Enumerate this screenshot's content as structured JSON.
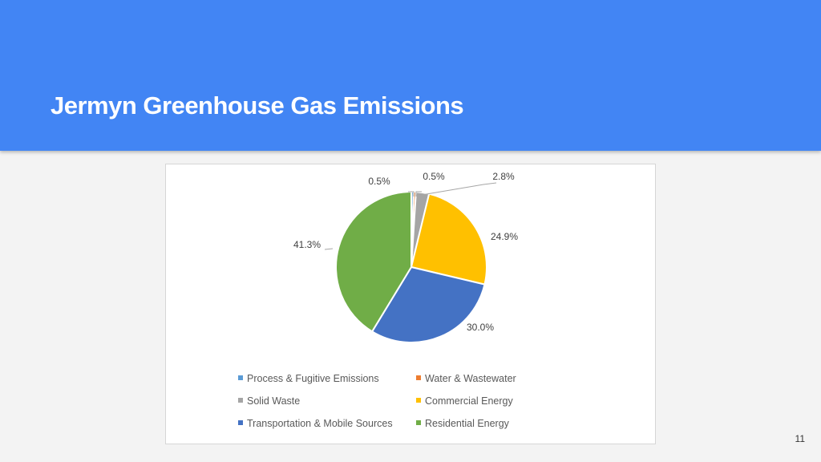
{
  "slide": {
    "title": "Jermyn Greenhouse Gas Emissions",
    "page_number": "11"
  },
  "colors": {
    "header_background": "#4285f4",
    "slide_background": "#f3f3f3"
  },
  "chart_data": {
    "type": "pie",
    "legend_position": "bottom",
    "slices": [
      {
        "name": "Process & Fugitive Emissions",
        "value": 0.5,
        "label": "0.5%",
        "color": "#5b9bd5"
      },
      {
        "name": "Water & Wastewater",
        "value": 0.5,
        "label": "0.5%",
        "color": "#ed7d31"
      },
      {
        "name": "Solid Waste",
        "value": 2.8,
        "label": "2.8%",
        "color": "#a5a5a5"
      },
      {
        "name": "Commercial Energy",
        "value": 24.9,
        "label": "24.9%",
        "color": "#ffc000"
      },
      {
        "name": "Transportation & Mobile Sources",
        "value": 30.0,
        "label": "30.0%",
        "color": "#4472c4"
      },
      {
        "name": "Residential Energy",
        "value": 41.3,
        "label": "41.3%",
        "color": "#70ad47"
      }
    ]
  }
}
